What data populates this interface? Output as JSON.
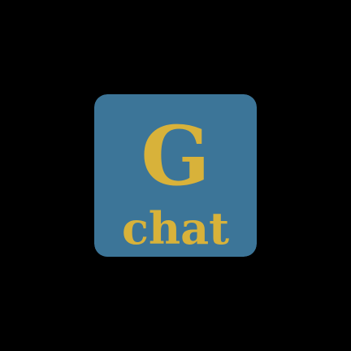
{
  "logo": {
    "letter": "G",
    "word": "chat",
    "icon": "gchat-app-icon",
    "colors": {
      "background": "#000000",
      "tile": "#3c7598",
      "text": "#d8b23a",
      "text_shadow": "#2f5d7a"
    }
  }
}
